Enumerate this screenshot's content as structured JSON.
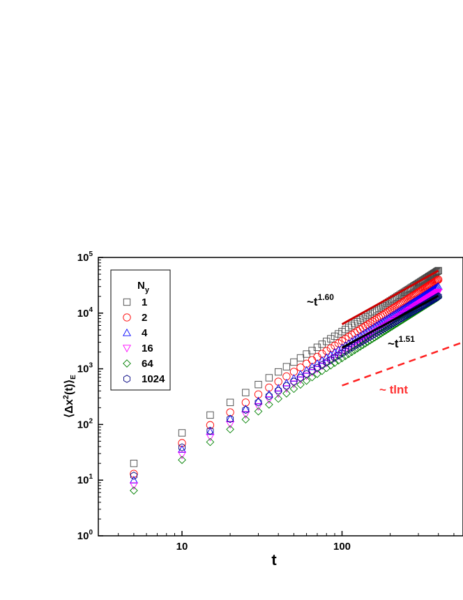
{
  "chart_data": {
    "type": "scatter",
    "x_scale": "log",
    "y_scale": "log",
    "xlim": [
      3,
      570
    ],
    "ylim": [
      1,
      100000
    ],
    "xlabel": "t",
    "ylabel": "⟨Δx²(t)⟩_E",
    "ylabel_parts": {
      "open": "⟨",
      "main": "Δx",
      "sup": "2",
      "mid": "(t)",
      "close": "⟩",
      "sub": "E"
    },
    "x_ticks": [
      10,
      100
    ],
    "x_tick_labels": [
      "10",
      "100"
    ],
    "y_ticks": [
      1,
      10,
      100,
      1000,
      10000,
      100000
    ],
    "y_tick_labels": [
      {
        "base": "10",
        "exp": "0"
      },
      {
        "base": "10",
        "exp": "1"
      },
      {
        "base": "10",
        "exp": "2"
      },
      {
        "base": "10",
        "exp": "3"
      },
      {
        "base": "10",
        "exp": "4"
      },
      {
        "base": "10",
        "exp": "5"
      }
    ],
    "legend": {
      "title": "N",
      "title_sub": "y",
      "position": "top-left"
    },
    "t_values": [
      5,
      10,
      15,
      20,
      25,
      30,
      35,
      40,
      45,
      50,
      55,
      60,
      65,
      70,
      75,
      80,
      85,
      90,
      95,
      100,
      105,
      110,
      115,
      120,
      125,
      130,
      135,
      140,
      145,
      150,
      155,
      160,
      165,
      170,
      175,
      180,
      185,
      190,
      195,
      200,
      205,
      210,
      215,
      220,
      225,
      230,
      235,
      240,
      245,
      250,
      255,
      260,
      265,
      270,
      275,
      280,
      285,
      290,
      295,
      300,
      305,
      310,
      315,
      320,
      325,
      330,
      335,
      340,
      345,
      350,
      355,
      360,
      365,
      370,
      375,
      380,
      385,
      390,
      395,
      400
    ],
    "series": [
      {
        "name": "1",
        "marker": "square",
        "color": "#444444",
        "y_at_5": 20,
        "y_at_400": 58000
      },
      {
        "name": "2",
        "marker": "circle",
        "color": "#ff0000",
        "y_at_5": 13,
        "y_at_400": 40000
      },
      {
        "name": "4",
        "marker": "triangle-up",
        "color": "#0000ff",
        "y_at_5": 10,
        "y_at_400": 30000
      },
      {
        "name": "16",
        "marker": "triangle-down",
        "color": "#ff00ff",
        "y_at_5": 8,
        "y_at_400": 24000
      },
      {
        "name": "64",
        "marker": "diamond",
        "color": "#008000",
        "y_at_5": 6.5,
        "y_at_400": 19500
      },
      {
        "name": "1024",
        "marker": "hexagon",
        "color": "#000080",
        "y_at_5": 12,
        "y_at_400": 20000
      }
    ],
    "fit_lines": [
      {
        "label_base": "~t",
        "label_exp": "1.60",
        "color": "#cc0000",
        "x_range": [
          100,
          400
        ],
        "y_range": [
          6300,
          58000
        ]
      },
      {
        "label_base": "~t",
        "label_exp": "1.51",
        "color": "#000000",
        "x_range": [
          100,
          400
        ],
        "y_range": [
          2400,
          20500
        ]
      }
    ],
    "reference_line": {
      "label": "~ tlnt",
      "color": "#ff2020",
      "x_range": [
        100,
        570
      ],
      "y_range": [
        500,
        3000
      ]
    }
  }
}
